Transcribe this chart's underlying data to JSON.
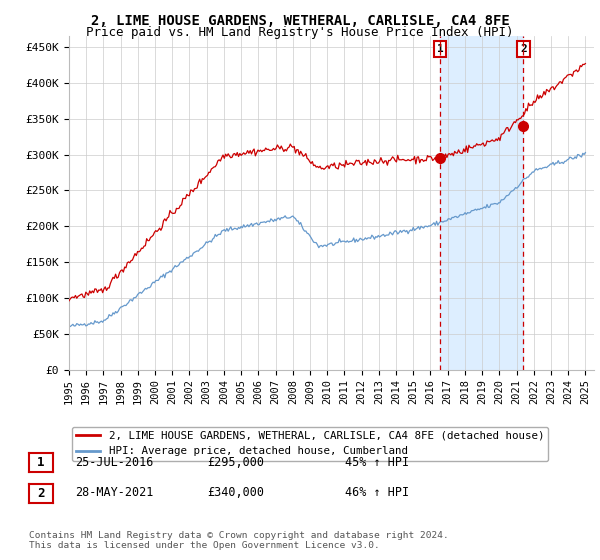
{
  "title": "2, LIME HOUSE GARDENS, WETHERAL, CARLISLE, CA4 8FE",
  "subtitle": "Price paid vs. HM Land Registry's House Price Index (HPI)",
  "title_fontsize": 10,
  "subtitle_fontsize": 9,
  "ylabel_ticks": [
    "£0",
    "£50K",
    "£100K",
    "£150K",
    "£200K",
    "£250K",
    "£300K",
    "£350K",
    "£400K",
    "£450K"
  ],
  "ytick_values": [
    0,
    50000,
    100000,
    150000,
    200000,
    250000,
    300000,
    350000,
    400000,
    450000
  ],
  "ylim": [
    0,
    465000
  ],
  "xlim_start": 1995.0,
  "xlim_end": 2025.5,
  "grid_color": "#cccccc",
  "background_color": "#ffffff",
  "plot_bg_color": "#ffffff",
  "red_line_color": "#cc0000",
  "blue_line_color": "#6699cc",
  "shade_color": "#ddeeff",
  "vline1_x": 2016.56,
  "vline2_x": 2021.4,
  "vline_color": "#cc0000",
  "marker1_y": 295000,
  "marker2_y": 340000,
  "legend_red_label": "2, LIME HOUSE GARDENS, WETHERAL, CARLISLE, CA4 8FE (detached house)",
  "legend_blue_label": "HPI: Average price, detached house, Cumberland",
  "sale1_date": "25-JUL-2016",
  "sale1_price": "£295,000",
  "sale1_hpi": "45% ↑ HPI",
  "sale2_date": "28-MAY-2021",
  "sale2_price": "£340,000",
  "sale2_hpi": "46% ↑ HPI",
  "footer": "Contains HM Land Registry data © Crown copyright and database right 2024.\nThis data is licensed under the Open Government Licence v3.0.",
  "xtick_years": [
    1995,
    1996,
    1997,
    1998,
    1999,
    2000,
    2001,
    2002,
    2003,
    2004,
    2005,
    2006,
    2007,
    2008,
    2009,
    2010,
    2011,
    2012,
    2013,
    2014,
    2015,
    2016,
    2017,
    2018,
    2019,
    2020,
    2021,
    2022,
    2023,
    2024,
    2025
  ]
}
